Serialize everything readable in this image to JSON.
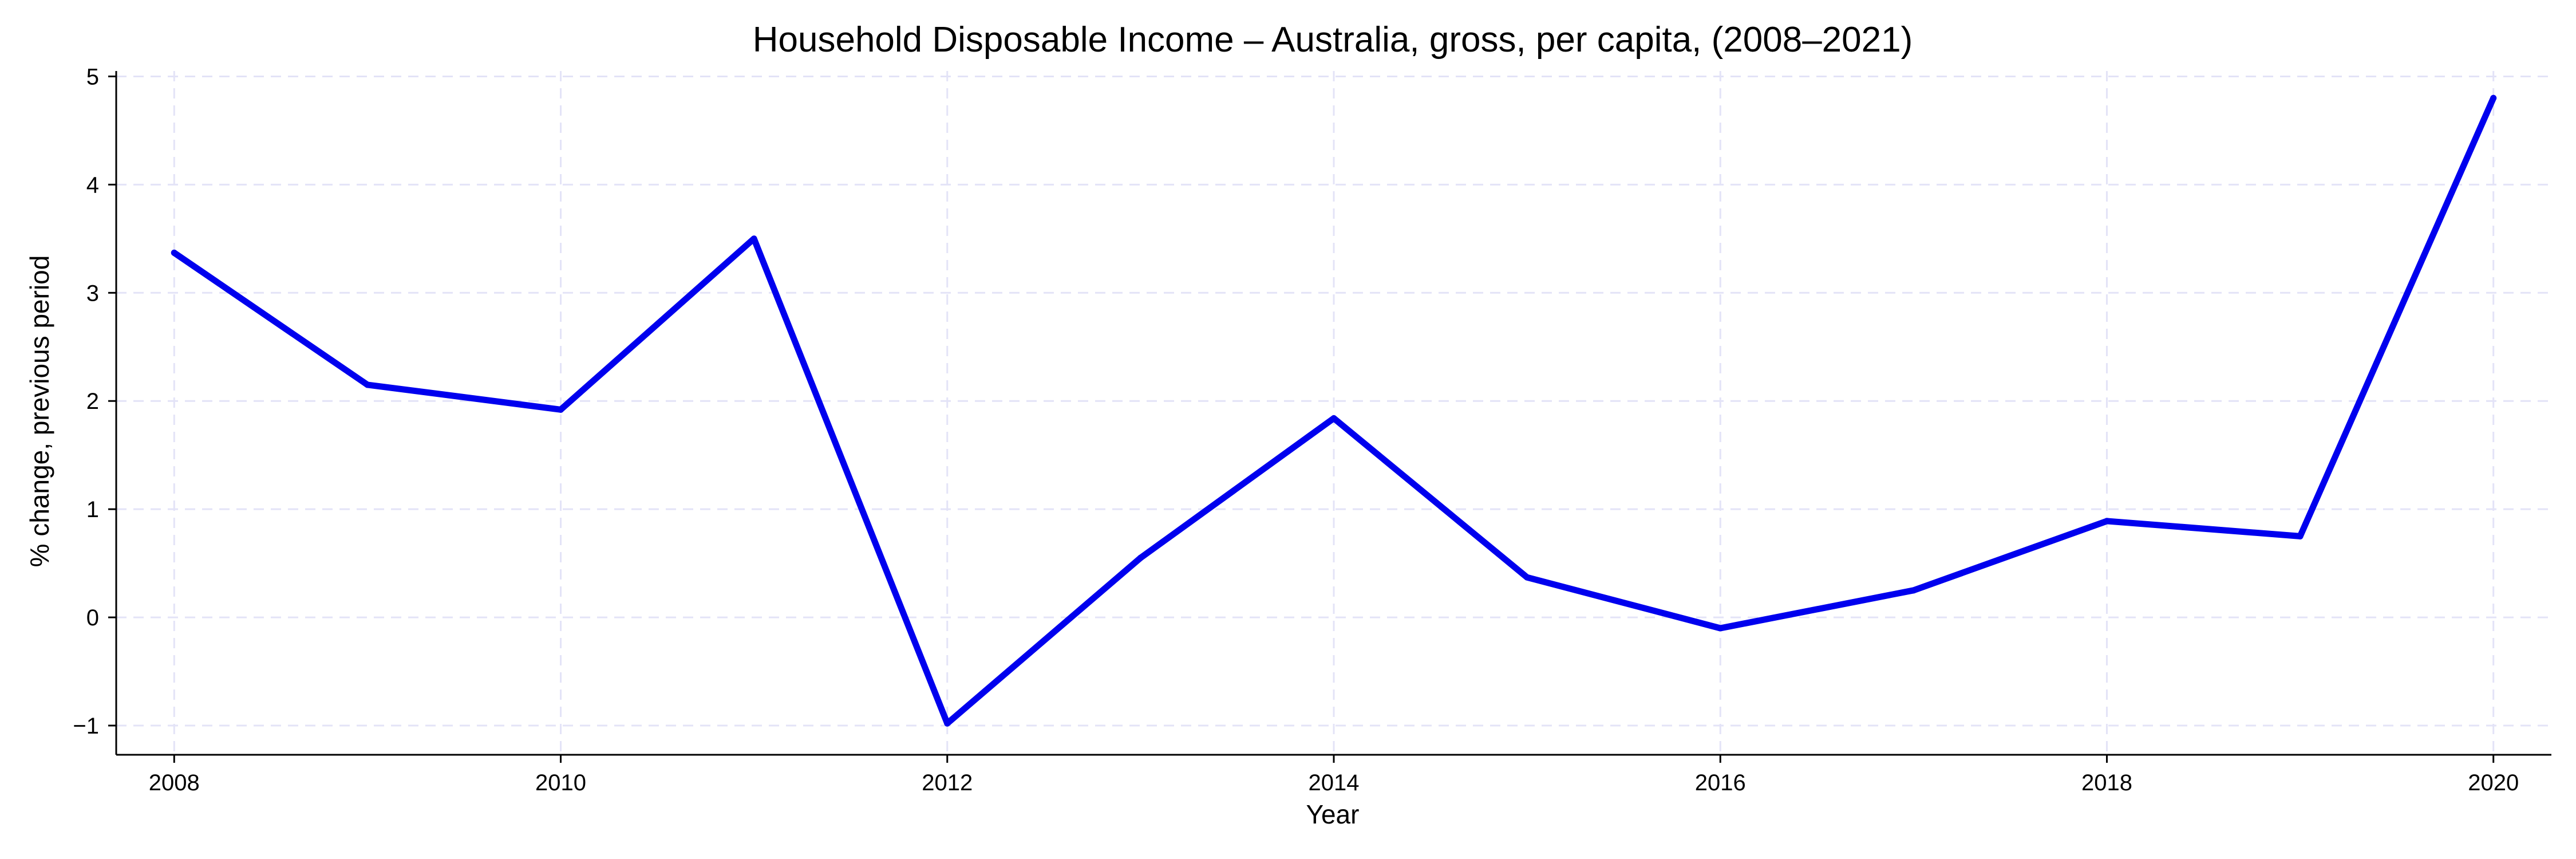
{
  "colors": {
    "series": "#0000ee",
    "grid": "#e3e3f7",
    "axis": "#000000"
  },
  "chart_data": {
    "type": "line",
    "title": "Household Disposable Income – Australia, gross, per capita, (2008–2021)",
    "xlabel": "Year",
    "ylabel": "% change, previous period",
    "x": [
      2008,
      2009,
      2010,
      2011,
      2012,
      2013,
      2014,
      2015,
      2016,
      2017,
      2018,
      2019,
      2020
    ],
    "series": [
      {
        "values": [
          3.37,
          2.15,
          1.92,
          3.5,
          -0.98,
          0.55,
          1.84,
          0.37,
          -0.1,
          0.25,
          0.89,
          0.75,
          4.8
        ]
      }
    ],
    "xlim": [
      2007.7,
      2020.3
    ],
    "ylim": [
      -1.27,
      5.05
    ],
    "xticks": [
      2008,
      2010,
      2012,
      2014,
      2016,
      2018,
      2020
    ],
    "xtick_labels": [
      "2008",
      "2010",
      "2012",
      "2014",
      "2016",
      "2018",
      "2020"
    ],
    "yticks": [
      -1,
      0,
      1,
      2,
      3,
      4,
      5
    ],
    "ytick_labels": [
      "−1",
      "0",
      "1",
      "2",
      "3",
      "4",
      "5"
    ],
    "grid": true,
    "legend": "none"
  }
}
